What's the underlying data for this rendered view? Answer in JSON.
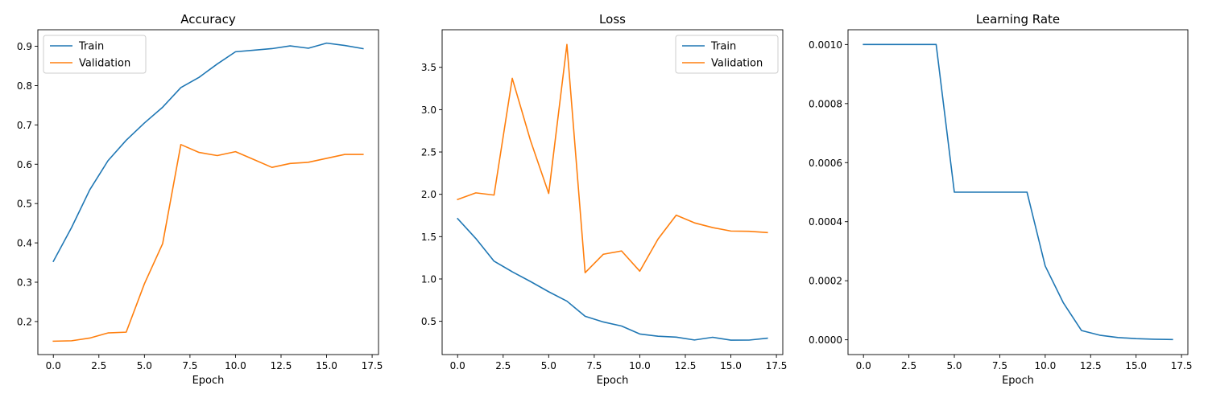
{
  "colors": {
    "train": "#1f77b4",
    "validation": "#ff7f0e",
    "axis": "#000000",
    "background": "#ffffff"
  },
  "chart_data": [
    {
      "type": "line",
      "title": "Accuracy",
      "xlabel": "Epoch",
      "ylabel": "",
      "xlim": [
        -0.85,
        17.85
      ],
      "ylim": [
        0.116,
        0.942
      ],
      "xticks": [
        0,
        2.5,
        5,
        7.5,
        10,
        12.5,
        15,
        17.5
      ],
      "xtick_labels": [
        "0.0",
        "2.5",
        "5.0",
        "7.5",
        "10.0",
        "12.5",
        "15.0",
        "17.5"
      ],
      "yticks": [
        0.2,
        0.3,
        0.4,
        0.5,
        0.6,
        0.7,
        0.8,
        0.9
      ],
      "ytick_labels": [
        "0.2",
        "0.3",
        "0.4",
        "0.5",
        "0.6",
        "0.7",
        "0.8",
        "0.9"
      ],
      "grid": false,
      "legend": "upper-left",
      "x": [
        0,
        1,
        2,
        3,
        4,
        5,
        6,
        7,
        8,
        9,
        10,
        11,
        12,
        13,
        14,
        15,
        16,
        17
      ],
      "series": [
        {
          "name": "Train",
          "color": "#1f77b4",
          "values": [
            0.353,
            0.439,
            0.535,
            0.609,
            0.661,
            0.705,
            0.745,
            0.795,
            0.821,
            0.855,
            0.886,
            0.89,
            0.894,
            0.901,
            0.895,
            0.908,
            0.902,
            0.894
          ]
        },
        {
          "name": "Validation",
          "color": "#ff7f0e",
          "values": [
            0.15,
            0.151,
            0.158,
            0.171,
            0.173,
            0.296,
            0.398,
            0.65,
            0.63,
            0.622,
            0.632,
            0.612,
            0.592,
            0.602,
            0.605,
            0.615,
            0.625,
            0.625
          ]
        }
      ]
    },
    {
      "type": "line",
      "title": "Loss",
      "xlabel": "Epoch",
      "ylabel": "",
      "xlim": [
        -0.85,
        17.85
      ],
      "ylim": [
        0.107,
        3.944
      ],
      "xticks": [
        0,
        2.5,
        5,
        7.5,
        10,
        12.5,
        15,
        17.5
      ],
      "xtick_labels": [
        "0.0",
        "2.5",
        "5.0",
        "7.5",
        "10.0",
        "12.5",
        "15.0",
        "17.5"
      ],
      "yticks": [
        0.5,
        1.0,
        1.5,
        2.0,
        2.5,
        3.0,
        3.5
      ],
      "ytick_labels": [
        "0.5",
        "1.0",
        "1.5",
        "2.0",
        "2.5",
        "3.0",
        "3.5"
      ],
      "grid": false,
      "legend": "upper-right",
      "x": [
        0,
        1,
        2,
        3,
        4,
        5,
        6,
        7,
        8,
        9,
        10,
        11,
        12,
        13,
        14,
        15,
        16,
        17
      ],
      "series": [
        {
          "name": "Train",
          "color": "#1f77b4",
          "values": [
            1.713,
            1.478,
            1.21,
            1.085,
            0.97,
            0.849,
            0.738,
            0.559,
            0.492,
            0.444,
            0.35,
            0.324,
            0.313,
            0.279,
            0.311,
            0.277,
            0.278,
            0.3
          ]
        },
        {
          "name": "Validation",
          "color": "#ff7f0e",
          "values": [
            1.939,
            2.017,
            1.991,
            3.37,
            2.636,
            2.01,
            3.77,
            1.074,
            1.292,
            1.331,
            1.092,
            1.471,
            1.754,
            1.663,
            1.607,
            1.566,
            1.563,
            1.548
          ]
        }
      ]
    },
    {
      "type": "line",
      "title": "Learning Rate",
      "xlabel": "Epoch",
      "ylabel": "",
      "xlim": [
        -0.85,
        17.85
      ],
      "ylim": [
        -5e-05,
        0.00105
      ],
      "xticks": [
        0,
        2.5,
        5,
        7.5,
        10,
        12.5,
        15,
        17.5
      ],
      "xtick_labels": [
        "0.0",
        "2.5",
        "5.0",
        "7.5",
        "10.0",
        "12.5",
        "15.0",
        "17.5"
      ],
      "yticks": [
        0,
        0.0002,
        0.0004,
        0.0006,
        0.0008,
        0.001
      ],
      "ytick_labels": [
        "0.0000",
        "0.0002",
        "0.0004",
        "0.0006",
        "0.0008",
        "0.0010"
      ],
      "grid": false,
      "legend": "none",
      "x": [
        0,
        1,
        2,
        3,
        4,
        5,
        6,
        7,
        8,
        9,
        10,
        11,
        12,
        13,
        14,
        15,
        16,
        17
      ],
      "series": [
        {
          "color": "#1f77b4",
          "values": [
            0.001,
            0.001,
            0.001,
            0.001,
            0.001,
            0.0005,
            0.0005,
            0.0005,
            0.0005,
            0.0005,
            0.00025,
            0.000125,
            3.13e-05,
            1.56e-05,
            7.8e-06,
            3.9e-06,
            2e-06,
            1e-06
          ]
        }
      ]
    }
  ]
}
